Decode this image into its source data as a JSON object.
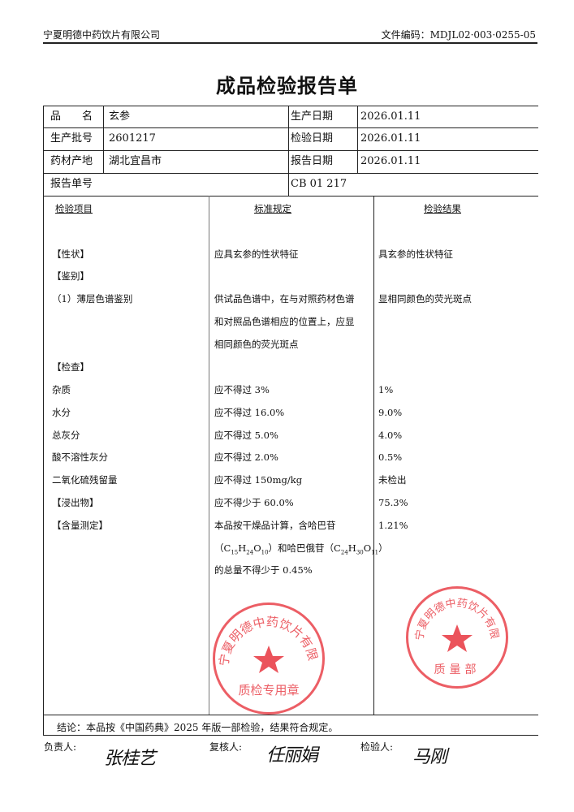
{
  "header": {
    "company": "宁夏明德中药饮片有限公司",
    "doc_code": "文件编码：MDJL02·003·0255-05"
  },
  "title": "成品检验报告单",
  "info": {
    "name_label": "品　　名",
    "name": "玄参",
    "batch_label": "生产批号",
    "batch": "2601217",
    "origin_label": "药材产地",
    "origin": "湖北宜昌市",
    "report_no_label": "报告单号",
    "report_no": "CB 01 217",
    "prod_date_label": "生产日期",
    "prod_date": "2026.01.11",
    "test_date_label": "检验日期",
    "test_date": "2026.01.11",
    "report_date_label": "报告日期",
    "report_date": "2026.01.11"
  },
  "columns": {
    "item": "检验项目",
    "standard": "标准规定",
    "result": "检验结果"
  },
  "rows": [
    {
      "item": "【性状】",
      "standard": "应具玄参的性状特征",
      "result": "具玄参的性状特征"
    },
    {
      "item": "【鉴别】",
      "standard": "",
      "result": ""
    },
    {
      "item": "（1）薄层色谱鉴别",
      "standard": "供试品色谱中，在与对照药材色谱",
      "result": "显相同颜色的荧光斑点"
    },
    {
      "item": "",
      "standard": "和对照品色谱相应的位置上，应显",
      "result": ""
    },
    {
      "item": "",
      "standard": "相同颜色的荧光斑点",
      "result": ""
    },
    {
      "item": "【检查】",
      "standard": "",
      "result": ""
    },
    {
      "item": "杂质",
      "standard": "应不得过 3%",
      "result": "1%"
    },
    {
      "item": "水分",
      "standard": "应不得过 16.0%",
      "result": "9.0%"
    },
    {
      "item": "总灰分",
      "standard": "应不得过 5.0%",
      "result": "4.0%"
    },
    {
      "item": "酸不溶性灰分",
      "standard": "应不得过 2.0%",
      "result": "0.5%"
    },
    {
      "item": "二氧化硫残留量",
      "standard": "应不得过 150mg/kg",
      "result": "未检出"
    },
    {
      "item": "【浸出物】",
      "standard": "应不得少于 60.0%",
      "result": "75.3%"
    },
    {
      "item": "【含量测定】",
      "standard": "本品按干燥品计算，含哈巴苷",
      "result": "1.21%"
    }
  ],
  "assay": {
    "line2_a": "（C",
    "f1_a": "15",
    "f1_b": "H",
    "f1_c": "24",
    "f1_d": "O",
    "f1_e": "10",
    "line2_b": "）和哈巴俄苷（C",
    "f2_a": "24",
    "f2_b": "H",
    "f2_c": "30",
    "f2_d": "O",
    "f2_e": "11",
    "line2_c": "）",
    "line3": "的总量不得少于 0.45%"
  },
  "conclusion": "结论：本品按《中国药典》2025 年版一部检验，结果符合规定。",
  "signatures": {
    "responsible_label": "负责人:",
    "responsible": "张桂艺",
    "reviewer_label": "复核人:",
    "reviewer": "任丽娟",
    "inspector_label": "检验人:",
    "inspector": "马刚"
  },
  "stamps": {
    "top": {
      "ring_text": "宁夏明德中药饮片有限公司",
      "center_text": "质量部"
    },
    "bottom": {
      "ring_text": "宁夏明德中药饮片有限公司",
      "center_text": "质检专用章"
    },
    "color": "#e62832"
  }
}
